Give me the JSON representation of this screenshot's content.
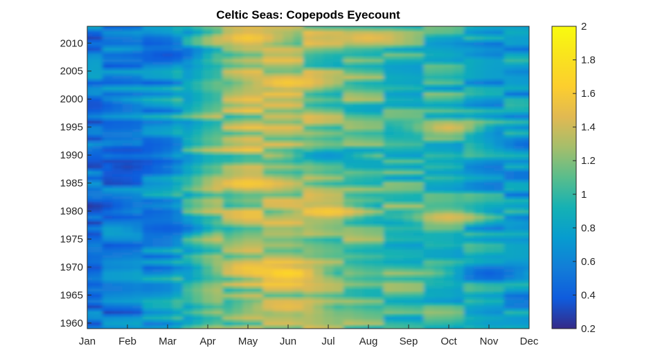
{
  "chart_data": {
    "type": "heatmap",
    "subtype": "filled-contour",
    "title": "Celtic Seas: Copepods Eyecount",
    "xlabel": "",
    "ylabel": "",
    "x_categories": [
      "Jan",
      "Feb",
      "Mar",
      "Apr",
      "May",
      "Jun",
      "Jul",
      "Aug",
      "Sep",
      "Oct",
      "Nov",
      "Dec"
    ],
    "y_range": [
      1959,
      2013
    ],
    "y_ticks": [
      1960,
      1965,
      1970,
      1975,
      1980,
      1985,
      1990,
      1995,
      2000,
      2005,
      2010
    ],
    "colorbar": {
      "colormap": "parula",
      "min": 0.2,
      "max": 2,
      "ticks": [
        "0.2",
        "0.4",
        "0.6",
        "0.8",
        "1",
        "1.2",
        "1.4",
        "1.6",
        "1.8",
        "2"
      ]
    },
    "monthly_mean": [
      0.55,
      0.6,
      0.7,
      1.1,
      1.3,
      1.3,
      1.15,
      1.05,
      1.0,
      0.95,
      0.8,
      0.75
    ],
    "anomalies": [
      {
        "month": "Jan",
        "year": 1981,
        "value": 0.25
      },
      {
        "month": "Jan",
        "year": 1999,
        "value": 0.35
      },
      {
        "month": "Feb",
        "year": 1988,
        "value": 0.3
      },
      {
        "month": "Feb",
        "year": 1991,
        "value": 0.35
      },
      {
        "month": "Mar",
        "year": 1977,
        "value": 0.4
      },
      {
        "month": "Mar",
        "year": 2008,
        "value": 0.35
      },
      {
        "month": "May",
        "year": 1985,
        "value": 1.6
      },
      {
        "month": "May",
        "year": 1970,
        "value": 1.55
      },
      {
        "month": "May",
        "year": 2011,
        "value": 1.6
      },
      {
        "month": "Jun",
        "year": 1969,
        "value": 1.7
      },
      {
        "month": "Jun",
        "year": 2003,
        "value": 1.6
      },
      {
        "month": "Jun",
        "year": 1963,
        "value": 1.5
      },
      {
        "month": "Jul",
        "year": 1980,
        "value": 1.6
      },
      {
        "month": "Jul",
        "year": 1990,
        "value": 0.7
      },
      {
        "month": "Aug",
        "year": 2011,
        "value": 1.5
      },
      {
        "month": "Oct",
        "year": 1995,
        "value": 1.45
      },
      {
        "month": "Oct",
        "year": 1979,
        "value": 1.45
      },
      {
        "month": "Nov",
        "year": 1969,
        "value": 0.4
      },
      {
        "month": "Dec",
        "year": 1992,
        "value": 0.45
      }
    ],
    "grid": false,
    "legend": "colorbar-right"
  }
}
